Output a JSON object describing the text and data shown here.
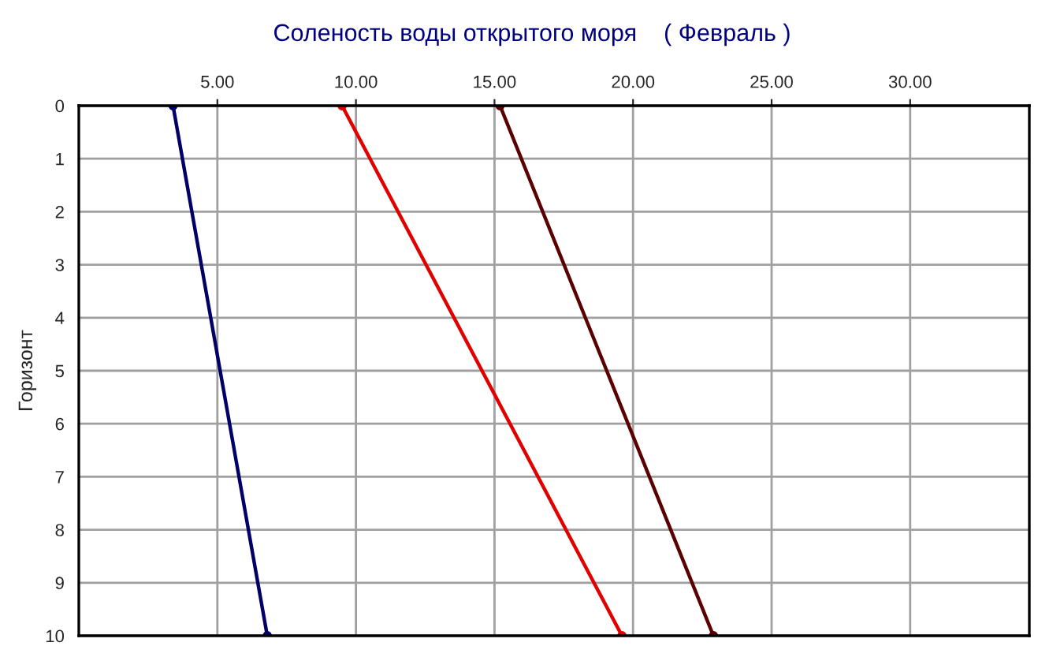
{
  "chart_data": {
    "type": "line",
    "title": "Соленость воды открытого моря    ( Февраль )",
    "ylabel": "Горизонт",
    "series": [
      {
        "color": "#000066",
        "x": [
          3.4,
          6.8
        ],
        "values": [
          0,
          10
        ]
      },
      {
        "color": "#e00000",
        "x": [
          9.5,
          19.6
        ],
        "values": [
          0,
          10
        ]
      },
      {
        "color": "#5a0000",
        "x": [
          15.2,
          22.9
        ],
        "values": [
          0,
          10
        ]
      }
    ],
    "xlim": [
      0,
      34.3
    ],
    "xticks": [
      {
        "value": 5,
        "label": "5.00"
      },
      {
        "value": 10,
        "label": "10.00"
      },
      {
        "value": 15,
        "label": "15.00"
      },
      {
        "value": 20,
        "label": "20.00"
      },
      {
        "value": 25,
        "label": "25.00"
      },
      {
        "value": 30,
        "label": "30.00"
      }
    ],
    "ylim": [
      10,
      0
    ],
    "yticks": [
      0,
      1,
      2,
      3,
      4,
      5,
      6,
      7,
      8,
      9,
      10
    ],
    "grid": true,
    "marker": "circle",
    "line_style": "solid",
    "legend": false
  }
}
